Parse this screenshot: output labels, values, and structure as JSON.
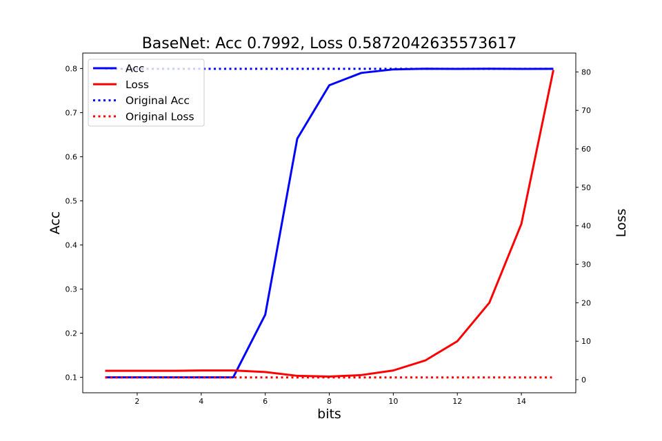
{
  "chart_data": {
    "type": "line",
    "title": "BaseNet: Acc 0.7992, Loss 0.5872042635573617",
    "xlabel": "bits",
    "ylabel_left": "Acc",
    "ylabel_right": "Loss",
    "x": [
      1,
      2,
      3,
      4,
      5,
      6,
      7,
      8,
      9,
      10,
      11,
      12,
      13,
      14,
      15
    ],
    "xlim": [
      0.3,
      15.7
    ],
    "ylim_left": [
      0.065,
      0.835
    ],
    "ylim_right": [
      -3.4,
      84.9
    ],
    "xticks": [
      2,
      4,
      6,
      8,
      10,
      12,
      14
    ],
    "yticks_left": [
      0.1,
      0.2,
      0.3,
      0.4,
      0.5,
      0.6,
      0.7,
      0.8
    ],
    "yticks_right": [
      0,
      10,
      20,
      30,
      40,
      50,
      60,
      70,
      80
    ],
    "legend_position": "top-left",
    "grid": false,
    "series": [
      {
        "name": "Acc",
        "axis": "left",
        "style": "solid",
        "color": "#0000ff",
        "values": [
          0.1,
          0.1,
          0.1,
          0.1,
          0.1,
          0.242,
          0.641,
          0.762,
          0.79,
          0.798,
          0.7995,
          0.799,
          0.7995,
          0.799,
          0.7992
        ]
      },
      {
        "name": "Loss",
        "axis": "right",
        "style": "solid",
        "color": "#ff0000",
        "values": [
          2.3,
          2.3,
          2.3,
          2.4,
          2.4,
          2.0,
          1.0,
          0.8,
          1.2,
          2.4,
          5.0,
          10.0,
          20.0,
          40.5,
          80.5
        ]
      },
      {
        "name": "Original Acc",
        "axis": "left",
        "style": "dotted",
        "color": "#0000ff",
        "values": [
          0.7992,
          0.7992,
          0.7992,
          0.7992,
          0.7992,
          0.7992,
          0.7992,
          0.7992,
          0.7992,
          0.7992,
          0.7992,
          0.7992,
          0.7992,
          0.7992,
          0.7992
        ]
      },
      {
        "name": "Original Loss",
        "axis": "right",
        "style": "dotted",
        "color": "#ff0000",
        "values": [
          0.5872,
          0.5872,
          0.5872,
          0.5872,
          0.5872,
          0.5872,
          0.5872,
          0.5872,
          0.5872,
          0.5872,
          0.5872,
          0.5872,
          0.5872,
          0.5872,
          0.5872
        ]
      }
    ]
  }
}
